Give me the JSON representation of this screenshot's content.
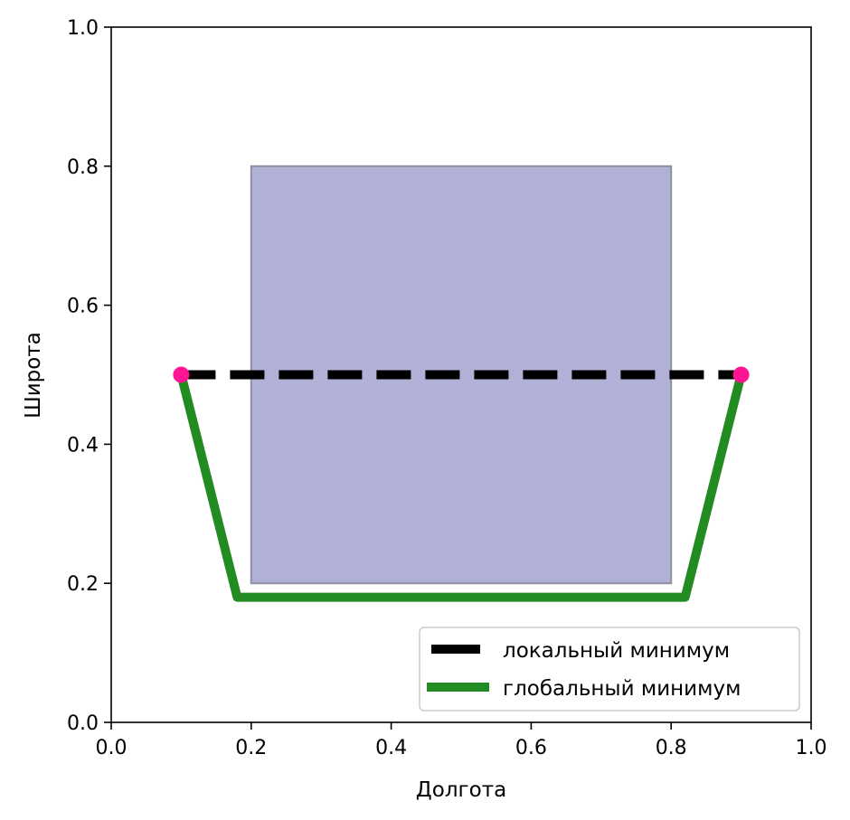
{
  "chart_data": {
    "type": "line",
    "title": "",
    "xlabel": "Долгота",
    "ylabel": "Широта",
    "xlim": [
      0.0,
      1.0
    ],
    "ylim": [
      0.0,
      1.0
    ],
    "xticks": [
      "0.0",
      "0.2",
      "0.4",
      "0.6",
      "0.8",
      "1.0"
    ],
    "yticks": [
      "0.0",
      "0.2",
      "0.4",
      "0.6",
      "0.8",
      "1.0"
    ],
    "xtick_values": [
      0.0,
      0.2,
      0.4,
      0.6,
      0.8,
      1.0
    ],
    "ytick_values": [
      0.0,
      0.2,
      0.4,
      0.6,
      0.8,
      1.0
    ],
    "grid": false,
    "legend_position": "lower-right",
    "obstacle": {
      "x_range": [
        0.2,
        0.8
      ],
      "y_range": [
        0.2,
        0.8
      ],
      "fill_color": "#b1b1d8",
      "edge_color": "#8f8fa0"
    },
    "series": [
      {
        "name": "локальный минимум",
        "style": "dashed",
        "color": "#000000",
        "x": [
          0.1,
          0.9
        ],
        "y": [
          0.5,
          0.5
        ]
      },
      {
        "name": "глобальный минимум",
        "style": "solid",
        "color": "#228b22",
        "x": [
          0.1,
          0.18,
          0.82,
          0.9
        ],
        "y": [
          0.5,
          0.18,
          0.18,
          0.5
        ]
      }
    ],
    "endpoints": {
      "color": "#ff1493",
      "points": [
        {
          "x": 0.1,
          "y": 0.5
        },
        {
          "x": 0.9,
          "y": 0.5
        }
      ]
    }
  }
}
